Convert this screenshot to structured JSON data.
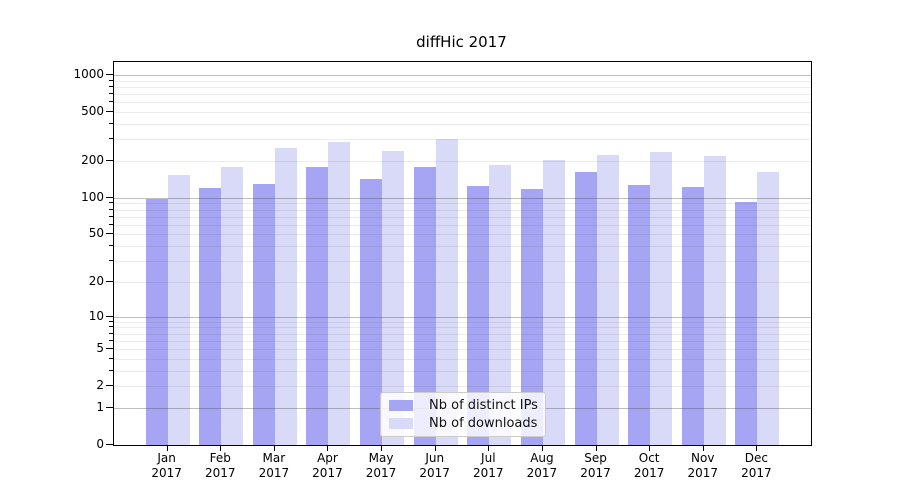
{
  "chart_data": {
    "type": "bar",
    "title": "diffHic 2017",
    "categories": [
      "Jan 2017",
      "Feb 2017",
      "Mar 2017",
      "Apr 2017",
      "May 2017",
      "Jun 2017",
      "Jul 2017",
      "Aug 2017",
      "Sep 2017",
      "Oct 2017",
      "Nov 2017",
      "Dec 2017"
    ],
    "series": [
      {
        "name": "Nb of distinct IPs",
        "color": "#a5a5f4",
        "values": [
          97,
          120,
          131,
          180,
          142,
          180,
          125,
          118,
          163,
          127,
          123,
          93
        ]
      },
      {
        "name": "Nb of downloads",
        "color": "#d9d9f8",
        "values": [
          154,
          180,
          257,
          287,
          242,
          300,
          186,
          204,
          224,
          236,
          219,
          162
        ]
      }
    ],
    "y_scale": "log10(value+1), zero at baseline",
    "y_ticks": [
      0,
      1,
      2,
      5,
      10,
      20,
      50,
      100,
      200,
      500,
      1000
    ],
    "ylim": [
      0,
      1120
    ],
    "xlabel": "",
    "ylabel": "",
    "grid": "on",
    "legend_position": "lower center"
  },
  "colors": {
    "major_grid": "rgba(70,70,70,0.35)",
    "minor_grid": "rgba(70,70,70,0.10)",
    "axis": "#000000",
    "text": "#000000",
    "legend_bg": "rgba(255,255,255,0.8)",
    "legend_border": "#cccccc"
  }
}
